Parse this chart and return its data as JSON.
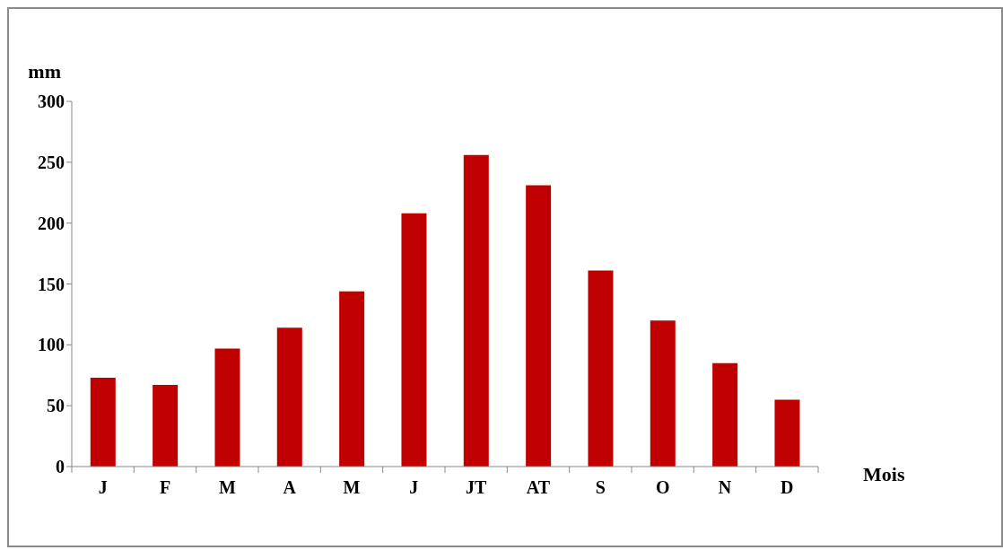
{
  "chart_data": {
    "type": "bar",
    "xlabel": "Mois",
    "ylabel": "mm",
    "categories": [
      "J",
      "F",
      "M",
      "A",
      "M",
      "J",
      "JT",
      "AT",
      "S",
      "O",
      "N",
      "D"
    ],
    "values": [
      73,
      67,
      97,
      114,
      144,
      208,
      256,
      231,
      161,
      120,
      85,
      55
    ],
    "color": "#c00000",
    "ylim": [
      0,
      300
    ],
    "yticks": [
      0,
      50,
      100,
      150,
      200,
      250,
      300
    ]
  }
}
